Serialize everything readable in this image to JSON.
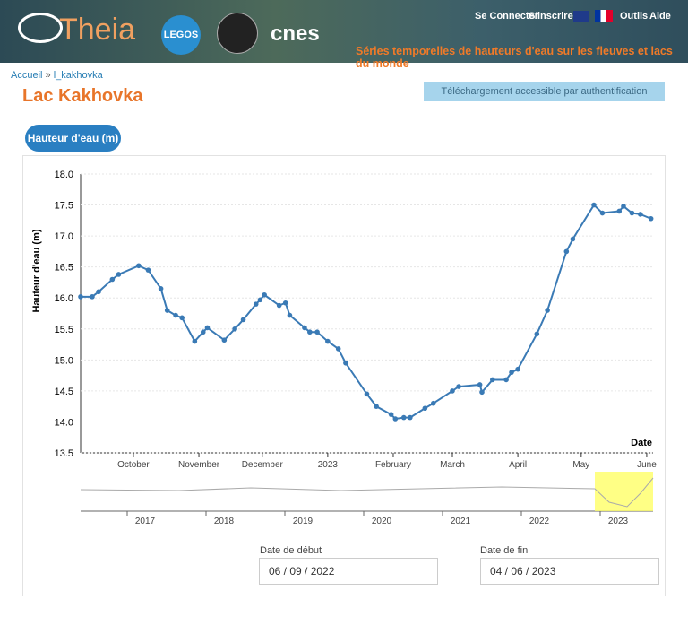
{
  "header": {
    "logo": "Theia",
    "partner": "LEGOS",
    "agency": "cnes",
    "links": [
      "Se Connecter",
      "S'inscrire",
      "Outils",
      "Aide"
    ],
    "tagline": "Séries temporelles de hauteurs d'eau sur les fleuves et lacs du monde"
  },
  "breadcrumb": {
    "home": "Accueil",
    "separator": "»",
    "current": "l_kakhovka"
  },
  "page_title": "Lac Kakhovka",
  "download_button": "Téléchargement accessible par authentification",
  "tab": "Hauteur d'eau (m)",
  "chart_data": {
    "type": "line",
    "y_label": "Hauteur d'eau (m)",
    "x_label": "Date",
    "color": "#3a7ab5",
    "grid": true,
    "x": [
      0,
      5.5,
      8.5,
      15,
      18,
      27.5,
      32,
      38,
      41,
      45,
      48,
      54,
      58,
      60,
      68,
      73,
      77,
      83,
      85,
      87,
      94,
      97,
      99,
      106,
      108.5,
      112,
      117,
      122,
      125.5,
      135.5,
      140,
      147,
      149,
      153,
      156,
      163,
      167,
      176,
      179,
      189,
      190,
      195,
      201.5,
      204,
      207,
      216,
      221,
      230,
      233,
      243,
      247,
      255,
      257,
      261,
      265,
      270
    ],
    "values": [
      16.02,
      16.02,
      16.1,
      16.3,
      16.38,
      16.52,
      16.45,
      16.15,
      15.8,
      15.72,
      15.68,
      15.3,
      15.45,
      15.52,
      15.32,
      15.5,
      15.65,
      15.9,
      15.97,
      16.05,
      15.88,
      15.92,
      15.72,
      15.52,
      15.45,
      15.45,
      15.3,
      15.18,
      14.95,
      14.45,
      14.25,
      14.12,
      14.05,
      14.07,
      14.07,
      14.22,
      14.3,
      14.5,
      14.57,
      14.6,
      14.48,
      14.68,
      14.68,
      14.8,
      14.85,
      15.42,
      15.8,
      16.75,
      16.95,
      17.5,
      17.37,
      17.4,
      17.48,
      17.37,
      17.35,
      17.28
    ],
    "xlim": [
      0,
      271
    ],
    "xticks": [
      {
        "value": 25,
        "label": "October"
      },
      {
        "value": 56,
        "label": "November"
      },
      {
        "value": 86,
        "label": "December"
      },
      {
        "value": 117,
        "label": "2023"
      },
      {
        "value": 148,
        "label": "February"
      },
      {
        "value": 176,
        "label": "March"
      },
      {
        "value": 207,
        "label": "April"
      },
      {
        "value": 237,
        "label": "May"
      },
      {
        "value": 268,
        "label": "June"
      }
    ],
    "ylim": [
      13.5,
      18
    ],
    "yticks": [
      13.5,
      {
        "value": 14,
        "label": "14.0"
      },
      14.5,
      {
        "value": 15,
        "label": "15.0"
      },
      15.5,
      {
        "value": 16,
        "label": "16.0"
      },
      16.5,
      {
        "value": 17,
        "label": "17.0"
      },
      17.5,
      {
        "value": 18,
        "label": "18.0"
      }
    ]
  },
  "navigator": {
    "years": [
      2017,
      2018,
      2019,
      2020,
      2021,
      2022,
      2023
    ]
  },
  "date_start": {
    "label": "Date de début",
    "value": "06 / 09 / 2022"
  },
  "date_end": {
    "label": "Date de fin",
    "value": "04 / 06 / 2023"
  }
}
